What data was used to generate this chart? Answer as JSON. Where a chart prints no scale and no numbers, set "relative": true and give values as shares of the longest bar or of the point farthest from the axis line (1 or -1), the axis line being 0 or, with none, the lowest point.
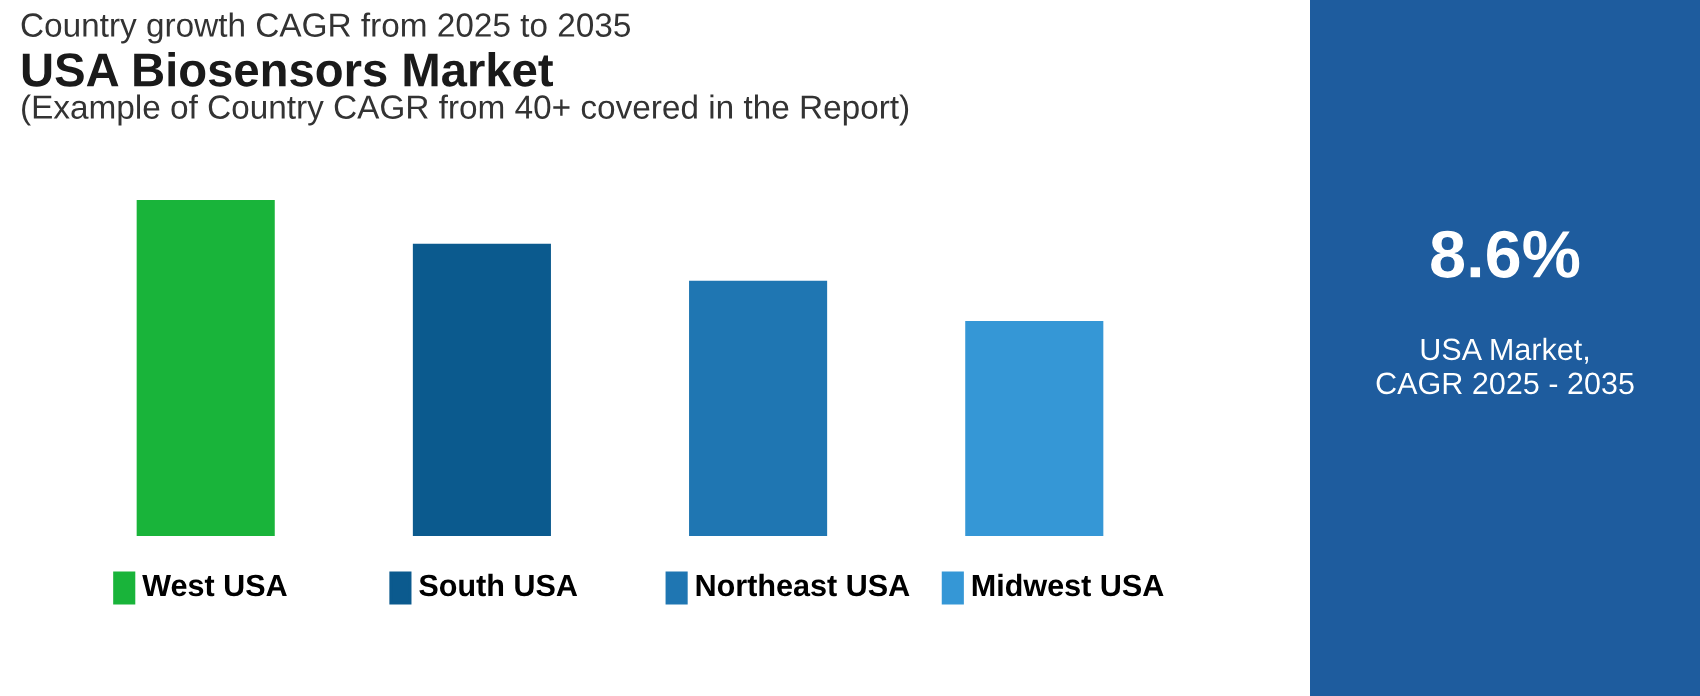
{
  "chart_data": [
    {
      "type": "bar",
      "title": "USA Biosensors Market",
      "subtitle": "(Example of Country CAGR from 40+ covered in the Report)",
      "annotations": [
        "Country growth CAGR from 2025 to 2035"
      ],
      "categories": [
        "West USA",
        "South USA",
        "Northeast USA",
        "Midwest USA"
      ],
      "relative": true,
      "series": [
        {
          "values": [
            1,
            0.87,
            0.76,
            0.64
          ],
          "colors": [
            "#19b43a",
            "#0b5a8e",
            "#1f76b2",
            "#3597d6"
          ]
        }
      ]
    },
    {
      "type": "other",
      "title": "8.6%",
      "annotations": [
        "USA Market,",
        "CAGR 2025 - 2035"
      ]
    }
  ]
}
